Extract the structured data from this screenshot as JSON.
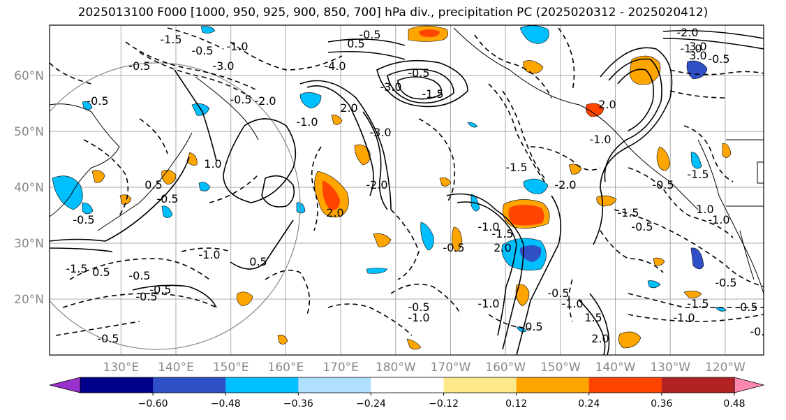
{
  "title": "2025013100 F000 [1000, 950, 925, 900, 850, 700] hPa div., precipitation PC (2025020312 - 2025020412)",
  "map": {
    "lat_labels": [
      "60°N",
      "50°N",
      "40°N",
      "30°N",
      "20°N"
    ],
    "lat_values": [
      60,
      50,
      40,
      30,
      20
    ],
    "lon_labels": [
      "130°E",
      "140°E",
      "150°E",
      "160°E",
      "170°E",
      "180°W",
      "170°W",
      "160°W",
      "150°W",
      "140°W",
      "130°W",
      "120°W"
    ],
    "lon_values": [
      130,
      140,
      150,
      160,
      170,
      180,
      190,
      200,
      210,
      220,
      230,
      240
    ],
    "extent": {
      "lon_min": 117,
      "lon_max": 247,
      "lat_min": 10,
      "lat_max": 69
    },
    "grid_lines": true
  },
  "colorbar": {
    "ticks": [
      "−0.60",
      "−0.48",
      "−0.36",
      "−0.24",
      "−0.12",
      "0.12",
      "0.24",
      "0.36",
      "0.48",
      "0.60"
    ],
    "colors": [
      "#9932CC",
      "#00008B",
      "#3050C8",
      "#00BFFF",
      "#B0E0FF",
      "#FFFFFF",
      "#FFE88A",
      "#FFA500",
      "#FF4500",
      "#B22222",
      "#FF88B0"
    ]
  },
  "contour_labels": [
    "-1.5",
    "-0.5",
    "-1.0",
    "-0.5",
    "0.5",
    "-3.0",
    "-0.5",
    "-4.0",
    "-3.0",
    "-0.5",
    "-1.5",
    "-2.0",
    "3.0",
    "-1.0",
    "3.0",
    "-0.5",
    "-0.5",
    "-2.0",
    "-1.0",
    "2.0",
    "-3.0",
    "-2.0",
    "-1.5",
    "-2.0",
    "2.0",
    "-1.0",
    "-0.5",
    "-1.5",
    "0.5",
    "-0.5",
    "1.0",
    "-0.5",
    "-0.5",
    "2.0",
    "-1.0",
    "-1.5",
    "2.0",
    "-0.5",
    "-1.0",
    "-0.5",
    "-0.5",
    "-1.0",
    "0.5",
    "-0.5",
    "-1.5",
    "-0.5",
    "-1.0",
    "-1.5",
    "-0.5",
    "1.0",
    "-1.0",
    "-0.5",
    "0.5",
    "-0.5",
    "2.0",
    "-1.0",
    "-0.5",
    "-0.5",
    "0.5",
    "-1.0",
    "-1.5",
    "1.5",
    "-0.5"
  ]
}
